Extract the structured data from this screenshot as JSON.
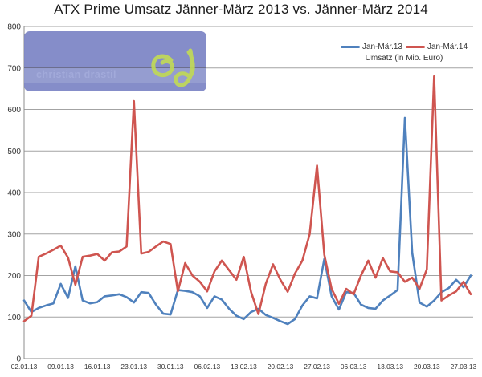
{
  "title": "ATX Prime Umsatz Jänner-März 2013 vs. Jänner-März 2014",
  "watermark": {
    "text": "christian drastil",
    "logo": "cd-script-logo",
    "box_color": "#7c85c5",
    "logo_color": "#b8d054"
  },
  "legend": {
    "entries": [
      {
        "label": "Jan-Mär.13",
        "color": "#4f81bd"
      },
      {
        "label": "Jan-Mär.14",
        "color": "#cf5550"
      }
    ],
    "note": "Umsatz (in Mio. Euro)"
  },
  "axes": {
    "y_ticks": [
      "0",
      "100",
      "200",
      "300",
      "400",
      "500",
      "600",
      "700",
      "800"
    ],
    "x_ticks": [
      "02.01.13",
      "09.01.13",
      "16.01.13",
      "23.01.13",
      "30.01.13",
      "06.02.13",
      "13.02.13",
      "20.02.13",
      "27.02.13",
      "06.03.13",
      "13.03.13",
      "20.03.13",
      "27.03.13"
    ]
  },
  "chart_data": {
    "type": "line",
    "title": "ATX Prime Umsatz Jänner-März 2013 vs. Jänner-März 2014",
    "ylabel": "Umsatz (in Mio. Euro)",
    "ylim": [
      0,
      800
    ],
    "ytick_step": 100,
    "grid": true,
    "legend_position": "top-right-inside",
    "x_tick_labels": [
      "02.01.13",
      "09.01.13",
      "16.01.13",
      "23.01.13",
      "30.01.13",
      "06.02.13",
      "13.02.13",
      "20.02.13",
      "27.02.13",
      "06.03.13",
      "13.03.13",
      "20.03.13",
      "27.03.13"
    ],
    "tick_every": 5,
    "n_points": 62,
    "series": [
      {
        "name": "Jan-Mär.13",
        "color": "#4f81bd",
        "values": [
          140,
          112,
          122,
          128,
          133,
          180,
          146,
          222,
          140,
          133,
          136,
          150,
          152,
          155,
          148,
          135,
          160,
          158,
          130,
          108,
          106,
          165,
          163,
          160,
          150,
          122,
          150,
          142,
          120,
          103,
          95,
          112,
          120,
          105,
          98,
          90,
          83,
          95,
          128,
          150,
          145,
          240,
          150,
          118,
          160,
          158,
          130,
          122,
          120,
          140,
          152,
          165,
          580,
          255,
          135,
          125,
          140,
          160,
          170,
          190,
          172,
          200
        ]
      },
      {
        "name": "Jan-Mär.14",
        "color": "#cf5550",
        "values": [
          90,
          103,
          245,
          253,
          262,
          272,
          243,
          178,
          245,
          248,
          252,
          236,
          256,
          258,
          270,
          620,
          253,
          257,
          270,
          282,
          276,
          162,
          230,
          200,
          185,
          162,
          210,
          236,
          213,
          190,
          245,
          160,
          107,
          180,
          227,
          190,
          161,
          205,
          236,
          300,
          465,
          250,
          168,
          132,
          168,
          155,
          200,
          236,
          195,
          242,
          210,
          208,
          185,
          195,
          168,
          215,
          680,
          140,
          152,
          162,
          185,
          155
        ]
      }
    ]
  }
}
